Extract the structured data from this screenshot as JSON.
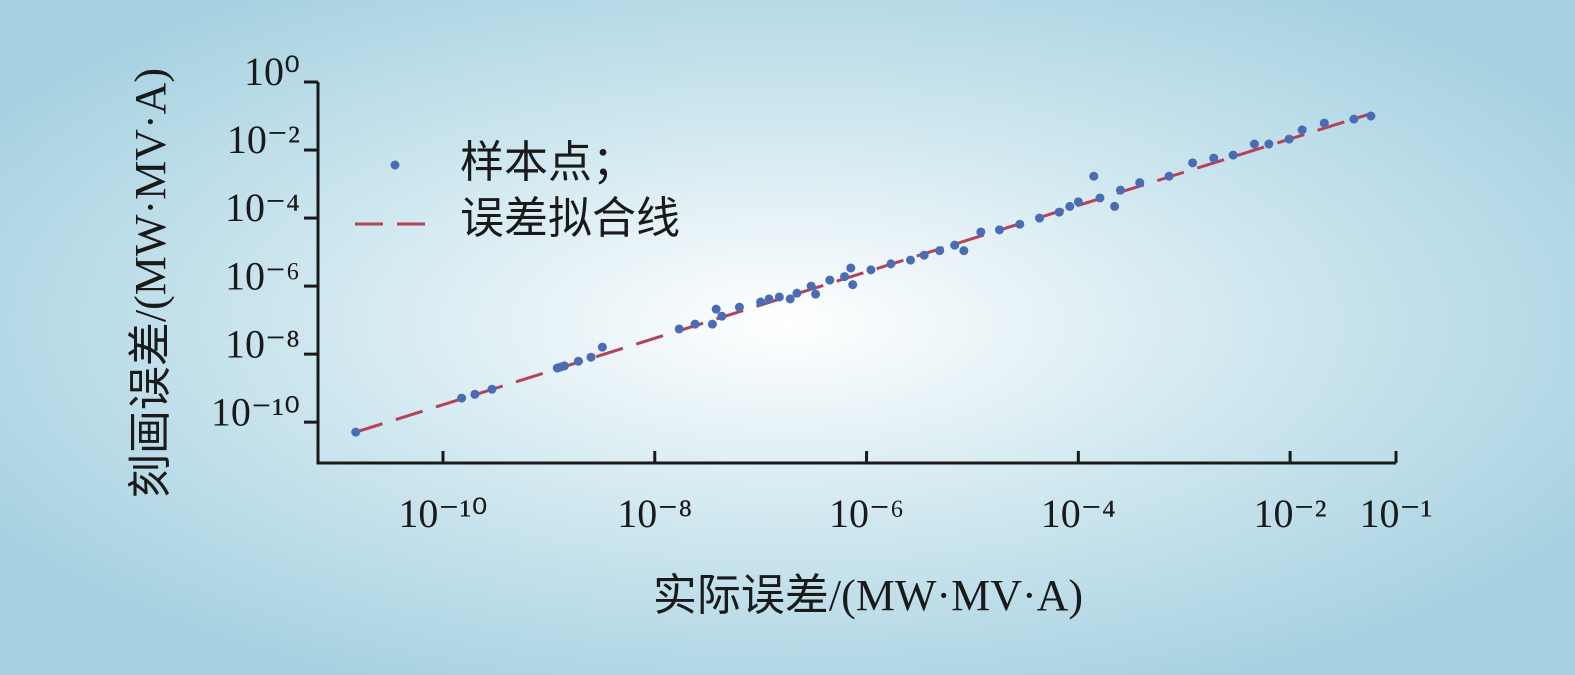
{
  "chart_data": {
    "type": "scatter",
    "x_label": "实际误差/(MW·MV·A)",
    "y_label": "刻画误差/(MW·MV·A)",
    "xscale": "log",
    "yscale": "log",
    "legend": "upper left",
    "xlim": [
      6.6e-12,
      0.1
    ],
    "ylim": [
      6.3e-12,
      1
    ],
    "xticks": [
      {
        "value": 1e-10,
        "label": "10⁻¹⁰"
      },
      {
        "value": 1e-08,
        "label": "10⁻⁸"
      },
      {
        "value": 1e-06,
        "label": "10⁻⁶"
      },
      {
        "value": 0.0001,
        "label": "10⁻⁴"
      },
      {
        "value": 0.01,
        "label": "10⁻²"
      },
      {
        "value": 0.1,
        "label": "10⁻¹"
      }
    ],
    "yticks": [
      {
        "value": 1,
        "label": "10⁰"
      },
      {
        "value": 0.01,
        "label": "10⁻²"
      },
      {
        "value": 0.0001,
        "label": "10⁻⁴"
      },
      {
        "value": 1e-06,
        "label": "10⁻⁶"
      },
      {
        "value": 1e-08,
        "label": "10⁻⁸"
      },
      {
        "value": 1e-10,
        "label": "10⁻¹⁰"
      }
    ],
    "series": [
      {
        "name": "样本点；",
        "type": "scatter",
        "color": "#4a6cb3",
        "x": [
          1.5e-11,
          1.5e-10,
          2e-10,
          2.9e-10,
          1.2e-09,
          1.3e-09,
          1.4e-09,
          1.9e-09,
          2.5e-09,
          3.2e-09,
          1.7e-08,
          2.4e-08,
          3.5e-08,
          3.8e-08,
          4.3e-08,
          6.3e-08,
          1e-07,
          1.2e-07,
          1.5e-07,
          1.9e-07,
          2.2e-07,
          3.3e-07,
          3e-07,
          4.5e-07,
          6.2e-07,
          7.1e-07,
          7.4e-07,
          1.1e-06,
          1.7e-06,
          2.6e-06,
          3.5e-06,
          4.9e-06,
          6.8e-06,
          8.3e-06,
          1.2e-05,
          1.8e-05,
          2.8e-05,
          4.3e-05,
          6.6e-05,
          8.3e-05,
          0.0001,
          0.00014,
          0.00016,
          0.00022,
          0.00025,
          0.00038,
          0.00072,
          0.0012,
          0.0019,
          0.0029,
          0.0046,
          0.0063,
          0.0098,
          0.013,
          0.021,
          0.04,
          0.058
        ],
        "values": [
          5.1e-11,
          5.1e-10,
          6.6e-10,
          9.3e-10,
          3.9e-09,
          4.2e-09,
          4.5e-09,
          6.2e-09,
          8.1e-09,
          1.6e-08,
          5.5e-08,
          7.6e-08,
          7.6e-08,
          2.1e-07,
          1.3e-07,
          2.4e-07,
          3.4e-07,
          4.2e-07,
          4.8e-07,
          4.2e-07,
          6.2e-07,
          5.8e-07,
          1e-06,
          1.5e-06,
          1.9e-06,
          3.4e-06,
          1.1e-06,
          3e-06,
          4.5e-06,
          5.8e-06,
          8.1e-06,
          1.1e-05,
          1.6e-05,
          1.1e-05,
          3.9e-05,
          4.5e-05,
          6.6e-05,
          0.0001,
          0.00015,
          0.00022,
          0.0003,
          0.0017,
          0.00039,
          0.00022,
          0.00066,
          0.0011,
          0.0017,
          0.0042,
          0.0058,
          0.0071,
          0.015,
          0.015,
          0.021,
          0.039,
          0.062,
          0.081,
          0.1
        ]
      },
      {
        "name": "误差拟合线",
        "type": "line",
        "line_style": "dashed",
        "color": "#b5425a",
        "x": [
          1.5e-11,
          0.059
        ],
        "values": [
          5.1e-11,
          0.12
        ]
      }
    ]
  }
}
